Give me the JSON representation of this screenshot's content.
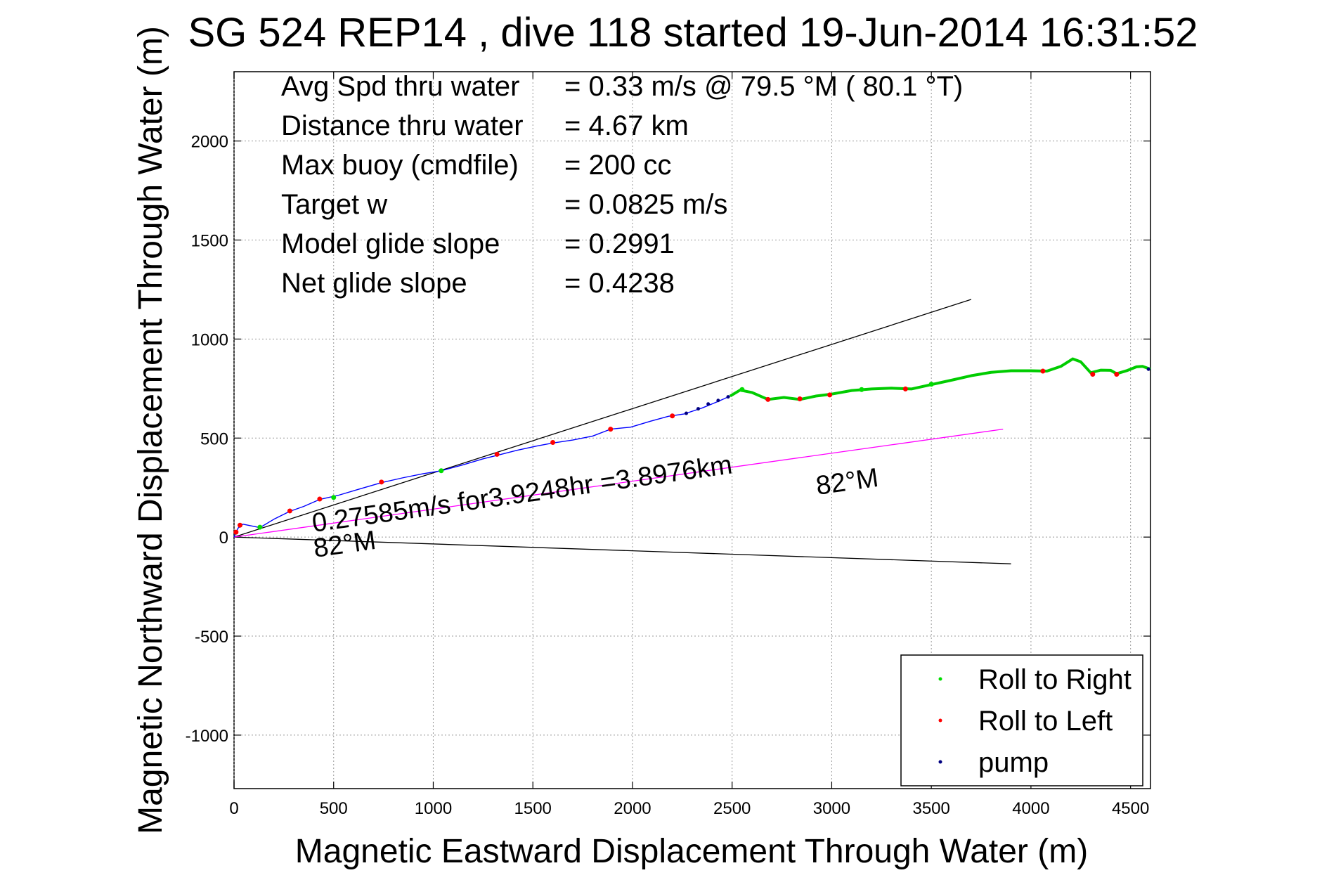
{
  "chart_data": {
    "type": "line",
    "title": "SG 524   REP14  , dive 118 started 19-Jun-2014 16:31:52",
    "xlabel": "Magnetic Eastward Displacement Through Water (m)",
    "ylabel": "Magnetic Northward Displacement Through Water (m)",
    "xlim": [
      0,
      4600
    ],
    "ylim": [
      -1270,
      2350
    ],
    "xticks": [
      0,
      500,
      1000,
      1500,
      2000,
      2500,
      3000,
      3500,
      4000,
      4500
    ],
    "yticks": [
      -1000,
      -500,
      0,
      500,
      1000,
      1500,
      2000
    ],
    "xtick_labels": [
      "0",
      "500",
      "1000",
      "1500",
      "2000",
      "2500",
      "3000",
      "3500",
      "4000",
      "4500"
    ],
    "ytick_labels": [
      "-1000",
      "-500",
      "0",
      "500",
      "1000",
      "1500",
      "2000"
    ],
    "grid": true,
    "legend_position": "bottom-right",
    "legend": [
      {
        "label": "Roll to Right",
        "color": "#00dd00"
      },
      {
        "label": "Roll to Left",
        "color": "#ff0000"
      },
      {
        "label": "pump",
        "color": "#000080"
      }
    ],
    "info_lines": [
      {
        "label": "Avg Spd thru water",
        "value": "=  0.33 m/s @  79.5 °M ( 80.1 °T)"
      },
      {
        "label": "Distance thru water",
        "value": "=  4.67 km"
      },
      {
        "label": "Max buoy (cmdfile)",
        "value": "= 200 cc"
      },
      {
        "label": "Target w",
        "value": "= 0.0825 m/s"
      },
      {
        "label": "Model glide slope",
        "value": "= 0.2991"
      },
      {
        "label": "Net glide slope",
        "value": "= 0.4238"
      }
    ],
    "annotations": {
      "current": "0.27585m/s for3.9248hr =3.8976km",
      "heading_upper": "82°M",
      "heading_lower": "82°M"
    },
    "reference_lines": [
      {
        "name": "upper-bound",
        "color": "#000000",
        "x": [
          0,
          3700
        ],
        "y": [
          0,
          1200
        ]
      },
      {
        "name": "lower-bound",
        "color": "#000000",
        "x": [
          0,
          3900
        ],
        "y": [
          0,
          -135
        ]
      },
      {
        "name": "current-vector",
        "color": "#ff00ff",
        "x": [
          0,
          3860
        ],
        "y": [
          0,
          545
        ]
      }
    ],
    "series": [
      {
        "role": "track-early",
        "color": "#0000ff",
        "x": [
          0,
          20,
          45,
          80,
          130,
          200,
          280,
          350,
          430,
          520,
          620,
          740,
          850,
          950,
          1040,
          1150,
          1250,
          1330,
          1420,
          1520,
          1600,
          1700,
          1800,
          1890,
          1990,
          2090,
          2180,
          2260,
          2350,
          2430,
          2490
        ],
        "y": [
          0,
          45,
          65,
          58,
          48,
          90,
          130,
          155,
          190,
          210,
          240,
          275,
          300,
          320,
          335,
          365,
          395,
          415,
          438,
          460,
          475,
          490,
          510,
          545,
          555,
          585,
          610,
          622,
          652,
          685,
          712
        ]
      },
      {
        "role": "track-late",
        "color": "#00cc00",
        "x": [
          2490,
          2540,
          2600,
          2680,
          2760,
          2840,
          2920,
          3000,
          3100,
          3200,
          3300,
          3400,
          3500,
          3600,
          3700,
          3800,
          3900,
          4000,
          4080,
          4150,
          4210,
          4250,
          4300,
          4350,
          4400,
          4430,
          4480,
          4530,
          4560,
          4600
        ],
        "y": [
          712,
          742,
          730,
          695,
          705,
          695,
          712,
          722,
          740,
          748,
          752,
          748,
          770,
          792,
          815,
          832,
          840,
          840,
          838,
          862,
          900,
          885,
          830,
          843,
          842,
          825,
          840,
          860,
          862,
          848
        ]
      }
    ],
    "roll_left_points": {
      "x": [
        10,
        30,
        280,
        430,
        740,
        1320,
        1600,
        1890,
        2200,
        2680,
        2840,
        2990,
        3370,
        4060,
        4310,
        4430
      ],
      "y": [
        25,
        60,
        132,
        192,
        278,
        418,
        478,
        545,
        612,
        695,
        698,
        718,
        748,
        838,
        822,
        822
      ]
    },
    "roll_right_points": {
      "x": [
        130,
        500,
        1040,
        2550,
        3150,
        3500
      ],
      "y": [
        50,
        200,
        335,
        745,
        745,
        772
      ]
    },
    "pump_points": {
      "x": [
        2270,
        2330,
        2380,
        2430,
        2480,
        4590
      ],
      "y": [
        625,
        648,
        672,
        690,
        708,
        848
      ]
    }
  }
}
